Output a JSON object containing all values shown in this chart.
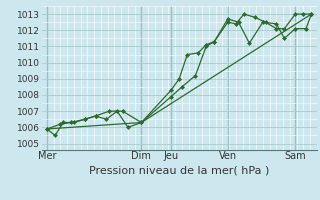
{
  "background_color": "#cce8ee",
  "grid_major_color": "#aacccc",
  "grid_minor_color": "#bbdddd",
  "line_color": "#2d6a2d",
  "marker_color": "#2d6a2d",
  "ylabel_ticks": [
    1005,
    1006,
    1007,
    1008,
    1009,
    1010,
    1011,
    1012,
    1013
  ],
  "ylim": [
    1004.6,
    1013.5
  ],
  "xlabel": "Pression niveau de la mer( hPa )",
  "xtick_labels": [
    "Mer",
    "Dim",
    "Jeu",
    "Ven",
    "Sam"
  ],
  "xtick_positions": [
    0.0,
    35.0,
    46.0,
    67.0,
    92.0
  ],
  "xvline_positions": [
    0.0,
    35.0,
    46.0,
    67.0,
    92.0
  ],
  "xlim": [
    -2,
    100
  ],
  "series1_x": [
    0,
    3,
    6,
    10,
    14,
    18,
    22,
    26,
    30,
    35,
    46,
    49,
    52,
    56,
    59,
    62,
    67,
    70,
    73,
    77,
    81,
    85,
    88,
    92,
    95,
    98
  ],
  "series1_y": [
    1005.9,
    1005.5,
    1006.3,
    1006.3,
    1006.5,
    1006.7,
    1006.5,
    1007.0,
    1006.0,
    1006.3,
    1008.3,
    1009.0,
    1010.5,
    1010.6,
    1011.1,
    1011.3,
    1012.5,
    1012.4,
    1013.0,
    1012.8,
    1012.5,
    1012.1,
    1012.1,
    1013.0,
    1013.0,
    1013.0
  ],
  "series2_x": [
    0,
    5,
    9,
    14,
    18,
    23,
    28,
    35,
    46,
    50,
    55,
    59,
    62,
    67,
    71,
    75,
    80,
    85,
    88,
    92,
    96,
    98
  ],
  "series2_y": [
    1005.9,
    1006.2,
    1006.3,
    1006.5,
    1006.7,
    1007.0,
    1007.0,
    1006.3,
    1007.9,
    1008.5,
    1009.2,
    1011.0,
    1011.3,
    1012.7,
    1012.5,
    1011.2,
    1012.5,
    1012.4,
    1011.5,
    1012.1,
    1012.1,
    1013.0
  ],
  "series3_x": [
    0,
    35,
    98
  ],
  "series3_y": [
    1005.9,
    1006.3,
    1013.0
  ],
  "xlabel_fontsize": 8,
  "ytick_fontsize": 6.5,
  "xtick_fontsize": 7
}
